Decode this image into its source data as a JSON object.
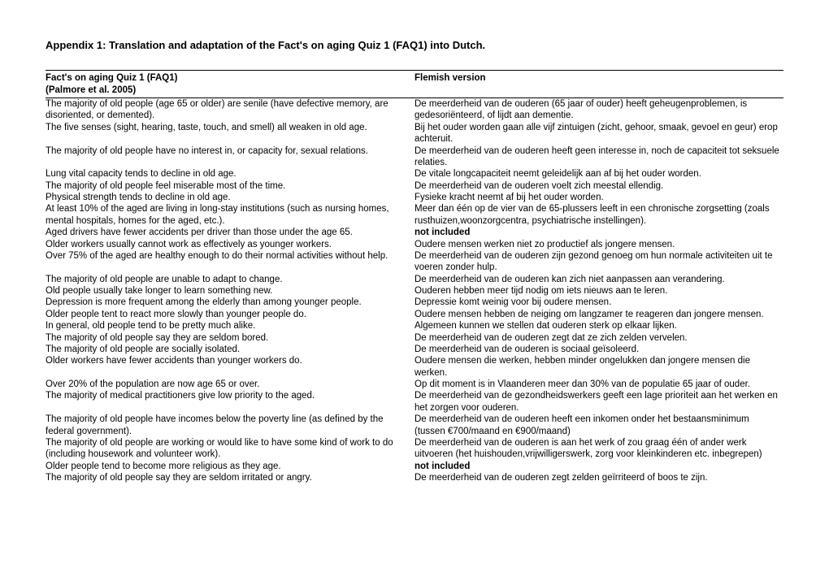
{
  "title": "Appendix 1: Translation and adaptation of the Fact's on aging Quiz 1 (FAQ1) into Dutch.",
  "header": {
    "left_line1": "Fact's on aging Quiz 1 (FAQ1)",
    "left_line2": "(Palmore et al. 2005)",
    "right": "Flemish version"
  },
  "rows": [
    {
      "en": "The majority of old people (age 65 or older) are senile (have defective memory, are disoriented, or demented).",
      "nl": "De meerderheid van de ouderen (65 jaar of ouder) heeft geheugenproblemen, is gedesoriënteerd, of lijdt aan dementie.",
      "nl_bold": false
    },
    {
      "en": "The five senses (sight, hearing, taste, touch, and smell) all weaken in old age.",
      "nl": "Bij het ouder worden gaan alle vijf zintuigen (zicht, gehoor, smaak, gevoel en geur) erop achteruit.",
      "nl_bold": false
    },
    {
      "en": "The majority of old people have no interest in, or capacity for, sexual relations.",
      "nl": "De meerderheid van de ouderen heeft geen interesse in, noch de capaciteit tot seksuele relaties.",
      "nl_bold": false
    },
    {
      "en": "Lung vital capacity tends to decline in old age.",
      "nl": "De vitale longcapaciteit neemt geleidelijk aan af bij het ouder worden.",
      "nl_bold": false
    },
    {
      "en": "The majority of old people feel miserable most of the time.",
      "nl": "De meerderheid van de ouderen voelt zich meestal ellendig.",
      "nl_bold": false
    },
    {
      "en": "Physical strength tends to decline in old age.",
      "nl": "Fysieke kracht neemt af bij het ouder worden.",
      "nl_bold": false
    },
    {
      "en": "At least 10% of the aged are living in long-stay institutions (such as nursing homes, mental hospitals, homes for the aged, etc.).",
      "nl": "Meer dan één op de vier van de 65-plussers leeft in een chronische zorgsetting (zoals rusthuizen,woonzorgcentra, psychiatrische instellingen).",
      "nl_bold": false
    },
    {
      "en": "Aged drivers have fewer accidents per driver than those under the age 65.",
      "nl": "not included",
      "nl_bold": true
    },
    {
      "en": "Older workers usually cannot work as effectively as younger workers.",
      "nl": "Oudere mensen werken niet zo productief als jongere mensen.",
      "nl_bold": false
    },
    {
      "en": "Over 75% of the aged are healthy enough to do their normal activities without help.",
      "nl": "De meerderheid van de ouderen zijn gezond genoeg om hun normale activiteiten uit te voeren zonder hulp.",
      "nl_bold": false
    },
    {
      "en": "The majority of old people are unable to adapt to change.",
      "nl": "De meerderheid van de ouderen kan zich niet aanpassen aan verandering.",
      "nl_bold": false
    },
    {
      "en": "Old people usually take longer to learn something new.",
      "nl": "Ouderen hebben meer tijd nodig om iets nieuws aan te leren.",
      "nl_bold": false
    },
    {
      "en": "Depression is more frequent among the elderly than among younger people.",
      "nl": "Depressie komt weinig voor bij oudere mensen.",
      "nl_bold": false
    },
    {
      "en": "Older people tent to react more slowly than younger people do.",
      "nl": "Oudere mensen hebben de neiging om langzamer te reageren dan jongere mensen.",
      "nl_bold": false
    },
    {
      "en": "In general, old people tend to be pretty much alike.",
      "nl": "Algemeen kunnen we stellen dat ouderen sterk op elkaar lijken.",
      "nl_bold": false
    },
    {
      "en": "The majority of old people say they are seldom bored.",
      "nl": "De meerderheid van de ouderen zegt dat ze zich zelden vervelen.",
      "nl_bold": false
    },
    {
      "en": "The majority of old people are socially isolated.",
      "nl": "De meerderheid van de ouderen is sociaal geïsoleerd.",
      "nl_bold": false
    },
    {
      "en": "Older workers have fewer accidents than younger workers do.",
      "nl": "Oudere mensen die werken, hebben minder ongelukken dan jongere mensen die werken.",
      "nl_bold": false
    },
    {
      "en": "Over 20% of the population are now age 65 or over.",
      "nl": "Op dit moment is in Vlaanderen meer dan 30% van de populatie 65 jaar of ouder.",
      "nl_bold": false
    },
    {
      "en": "The majority of medical practitioners give low priority to the aged.",
      "nl": "De meerderheid van de gezondheidswerkers geeft een lage prioriteit aan het werken en het zorgen voor ouderen.",
      "nl_bold": false
    },
    {
      "en": "The majority of old people have incomes below the poverty line (as defined by the federal government).",
      "nl": "De meerderheid van de ouderen heeft een inkomen onder het bestaansminimum (tussen €700/maand en €900/maand)",
      "nl_bold": false
    },
    {
      "en": "The majority of old people are working or would like to have some kind of work to do (including housework and volunteer work).",
      "nl": "De meerderheid van de ouderen is aan het werk of zou graag één of ander werk uitvoeren (het huishouden,vrijwilligerswerk, zorg voor kleinkinderen etc. inbegrepen)",
      "nl_bold": false
    },
    {
      "en": "Older people tend to become more religious as they age.",
      "nl": "not included",
      "nl_bold": true
    },
    {
      "en": "The majority of old people say they are seldom irritated or angry.",
      "nl": "De meerderheid van de ouderen zegt zelden geïrriteerd of boos te zijn.",
      "nl_bold": false
    }
  ]
}
